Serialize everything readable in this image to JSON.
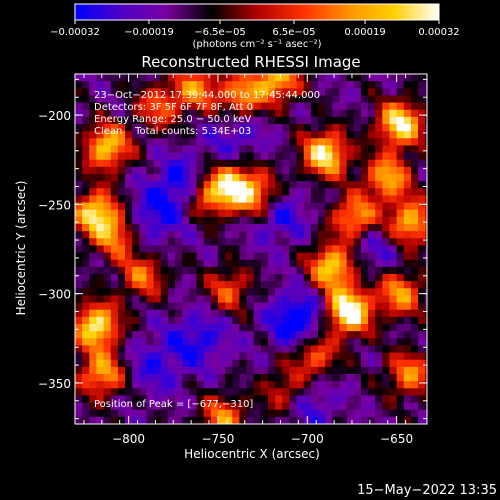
{
  "chart_data": {
    "type": "heatmap",
    "title": "Reconstructed RHESSI Image",
    "xlabel": "Heliocentric X (arcsec)",
    "ylabel": "Heliocentric Y (arcsec)",
    "xlim": [
      -830,
      -633
    ],
    "ylim": [
      -373,
      -177
    ],
    "x_ticks": [
      {
        "value": -800,
        "label": "−800"
      },
      {
        "value": -750,
        "label": "−750"
      },
      {
        "value": -700,
        "label": "−700"
      },
      {
        "value": -650,
        "label": "−650"
      }
    ],
    "y_ticks": [
      {
        "value": -200,
        "label": "−200"
      },
      {
        "value": -250,
        "label": "−250"
      },
      {
        "value": -300,
        "label": "−300"
      },
      {
        "value": -350,
        "label": "−350"
      }
    ],
    "colorbar": {
      "min": -0.00032,
      "max": 0.00032,
      "tick_values": [
        -0.00032,
        -0.00019,
        -6.5e-05,
        6.5e-05,
        0.00019,
        0.00032
      ],
      "tick_labels": [
        "−0.00032",
        "−0.00019",
        "−6.5e−05",
        "6.5e−05",
        "0.00019",
        "0.00032"
      ],
      "unit_label": "(photons cm⁻² s⁻¹ asec⁻²)",
      "colors": [
        "#0000ff",
        "#4b00c8",
        "#7a00a0",
        "#000000",
        "#b00000",
        "#ff3000",
        "#ff9000",
        "#ffd000",
        "#ffffff"
      ]
    },
    "annotations": [
      "23−Oct−2012 17:39:44.000 to 17:45:44.000",
      "Detectors: 3F 5F 6F 7F 8F, Att 0",
      "Energy Range: 25.0 − 50.0 keV",
      "Clean    Total counts: 5.34E+03"
    ],
    "peak": {
      "label": "Position of Peak = [−677,−310]",
      "x": -677,
      "y": -310
    },
    "hot_spots": [
      {
        "x": -677,
        "y": -310,
        "level": 1.0
      },
      {
        "x": -686,
        "y": -285,
        "level": 0.8
      },
      {
        "x": -690,
        "y": -222,
        "level": 0.85
      },
      {
        "x": -673,
        "y": -258,
        "level": 0.7
      },
      {
        "x": -696,
        "y": -335,
        "level": 0.55
      },
      {
        "x": -648,
        "y": -205,
        "level": 0.85
      },
      {
        "x": -655,
        "y": -235,
        "level": 0.65
      },
      {
        "x": -642,
        "y": -260,
        "level": 0.7
      },
      {
        "x": -648,
        "y": -300,
        "level": 0.6
      },
      {
        "x": -643,
        "y": -345,
        "level": 0.55
      },
      {
        "x": -717,
        "y": -180,
        "level": 0.7
      },
      {
        "x": -737,
        "y": -190,
        "level": 0.6
      },
      {
        "x": -762,
        "y": -185,
        "level": 0.55
      },
      {
        "x": -742,
        "y": -240,
        "level": 0.75
      },
      {
        "x": -727,
        "y": -245,
        "level": 0.6
      },
      {
        "x": -757,
        "y": -245,
        "level": 0.55
      },
      {
        "x": -812,
        "y": -218,
        "level": 0.75
      },
      {
        "x": -818,
        "y": -255,
        "level": 0.8
      },
      {
        "x": -806,
        "y": -268,
        "level": 0.55
      },
      {
        "x": -818,
        "y": -318,
        "level": 0.85
      },
      {
        "x": -815,
        "y": -345,
        "level": 0.65
      },
      {
        "x": -783,
        "y": -195,
        "level": 0.45
      },
      {
        "x": -792,
        "y": -290,
        "level": 0.5
      },
      {
        "x": -744,
        "y": -298,
        "level": 0.45
      },
      {
        "x": -747,
        "y": -370,
        "level": 0.55
      },
      {
        "x": -712,
        "y": -355,
        "level": 0.45
      }
    ],
    "cold_spots": [
      {
        "x": -770,
        "y": -240,
        "level": 0.75
      },
      {
        "x": -790,
        "y": -260,
        "level": 0.55
      },
      {
        "x": -705,
        "y": -315,
        "level": 0.85
      },
      {
        "x": -717,
        "y": -255,
        "level": 0.6
      },
      {
        "x": -740,
        "y": -210,
        "level": 0.45
      },
      {
        "x": -760,
        "y": -325,
        "level": 0.55
      },
      {
        "x": -665,
        "y": -272,
        "level": 0.45
      },
      {
        "x": -700,
        "y": -360,
        "level": 0.5
      },
      {
        "x": -785,
        "y": -340,
        "level": 0.45
      }
    ]
  },
  "footer": {
    "timestamp": "15−May−2022 13:35"
  }
}
